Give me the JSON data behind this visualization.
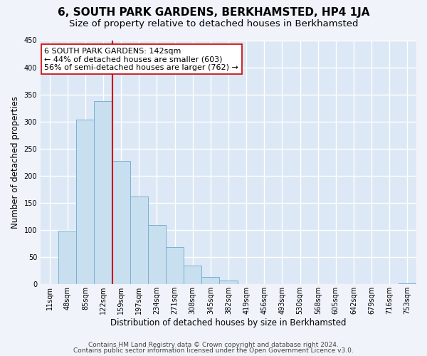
{
  "title": "6, SOUTH PARK GARDENS, BERKHAMSTED, HP4 1JA",
  "subtitle": "Size of property relative to detached houses in Berkhamsted",
  "xlabel": "Distribution of detached houses by size in Berkhamsted",
  "ylabel": "Number of detached properties",
  "bin_labels": [
    "11sqm",
    "48sqm",
    "85sqm",
    "122sqm",
    "159sqm",
    "197sqm",
    "234sqm",
    "271sqm",
    "308sqm",
    "345sqm",
    "382sqm",
    "419sqm",
    "456sqm",
    "493sqm",
    "530sqm",
    "568sqm",
    "605sqm",
    "642sqm",
    "679sqm",
    "716sqm",
    "753sqm"
  ],
  "bar_heights": [
    0,
    99,
    304,
    338,
    228,
    162,
    109,
    69,
    34,
    13,
    7,
    0,
    0,
    0,
    0,
    0,
    0,
    0,
    0,
    0,
    2
  ],
  "bar_color": "#c8dff0",
  "bar_edge_color": "#7ab0d0",
  "vline_x_index": 3,
  "vline_color": "#cc0000",
  "annotation_line1": "6 SOUTH PARK GARDENS: 142sqm",
  "annotation_line2": "← 44% of detached houses are smaller (603)",
  "annotation_line3": "56% of semi-detached houses are larger (762) →",
  "annotation_box_color": "white",
  "annotation_box_edge": "#cc0000",
  "ylim": [
    0,
    450
  ],
  "yticks": [
    0,
    50,
    100,
    150,
    200,
    250,
    300,
    350,
    400,
    450
  ],
  "footer1": "Contains HM Land Registry data © Crown copyright and database right 2024.",
  "footer2": "Contains public sector information licensed under the Open Government Licence v3.0.",
  "bg_color": "#f0f4fa",
  "plot_bg_color": "#dce8f5",
  "grid_color": "white",
  "title_fontsize": 11,
  "subtitle_fontsize": 9.5,
  "axis_label_fontsize": 8.5,
  "tick_fontsize": 7,
  "annotation_fontsize": 8,
  "footer_fontsize": 6.5
}
